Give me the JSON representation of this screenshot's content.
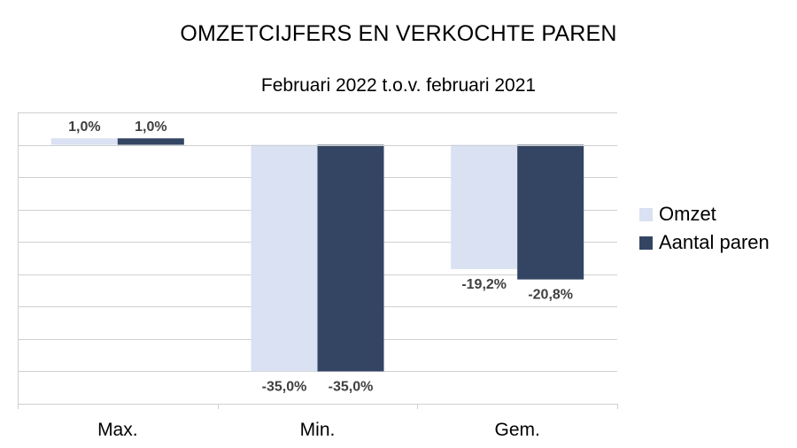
{
  "chart_data": {
    "type": "bar",
    "title": "OMZETCIJFERS EN VERKOCHTE PAREN",
    "subtitle": "Februari 2022 t.o.v. februari 2021",
    "categories": [
      "Max.",
      "Min.",
      "Gem."
    ],
    "series": [
      {
        "name": "Omzet",
        "values": [
          1.0,
          -35.0,
          -19.2
        ],
        "labels": [
          "1,0%",
          "-35,0%",
          "-19,2%"
        ],
        "color": "#d9e1f2"
      },
      {
        "name": "Aantal paren",
        "values": [
          1.0,
          -35.0,
          -20.8
        ],
        "labels": [
          "1,0%",
          "-35,0%",
          "-20,8%"
        ],
        "color": "#344563"
      }
    ],
    "ylim": [
      -40,
      5
    ],
    "grid": true,
    "legend_position": "right"
  }
}
